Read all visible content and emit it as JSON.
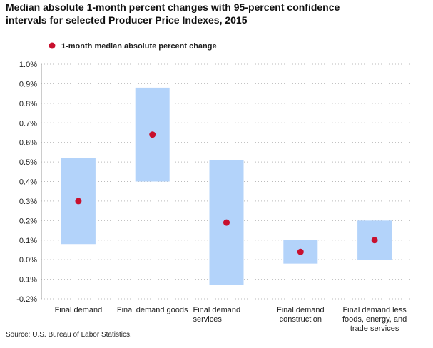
{
  "chart_data": {
    "type": "interval",
    "title": "Median absolute 1-month percent changes with 95-percent confidence\nintervals for selected Producer Price Indexes, 2015",
    "categories": [
      "Final demand",
      "Final demand goods",
      "Final demand\nservices",
      "Final demand\nconstruction",
      "Final demand less\nfoods, energy, and\ntrade services"
    ],
    "series": [
      {
        "name": "1-month median absolute percent change",
        "color": "#c8102e",
        "values": [
          0.3,
          0.64,
          0.19,
          0.04,
          0.1
        ]
      }
    ],
    "intervals": {
      "color": "#b3d3fa",
      "low": [
        0.08,
        0.4,
        -0.13,
        -0.02,
        0.0
      ],
      "high": [
        0.52,
        0.88,
        0.51,
        0.1,
        0.2
      ]
    },
    "ylim": [
      -0.2,
      1.0
    ],
    "yticks": [
      {
        "value": -0.2,
        "label": "-0.2%"
      },
      {
        "value": -0.1,
        "label": "-0.1%"
      },
      {
        "value": 0.0,
        "label": "0.0%"
      },
      {
        "value": 0.1,
        "label": "0.1%"
      },
      {
        "value": 0.2,
        "label": "0.2%"
      },
      {
        "value": 0.3,
        "label": "0.3%"
      },
      {
        "value": 0.4,
        "label": "0.4%"
      },
      {
        "value": 0.5,
        "label": "0.5%"
      },
      {
        "value": 0.6,
        "label": "0.6%"
      },
      {
        "value": 0.7,
        "label": "0.7%"
      },
      {
        "value": 0.8,
        "label": "0.8%"
      },
      {
        "value": 0.9,
        "label": "0.9%"
      },
      {
        "value": 1.0,
        "label": "1.0%"
      }
    ],
    "grid": true,
    "source": "Source: U.S. Bureau of Labor Statistics."
  }
}
